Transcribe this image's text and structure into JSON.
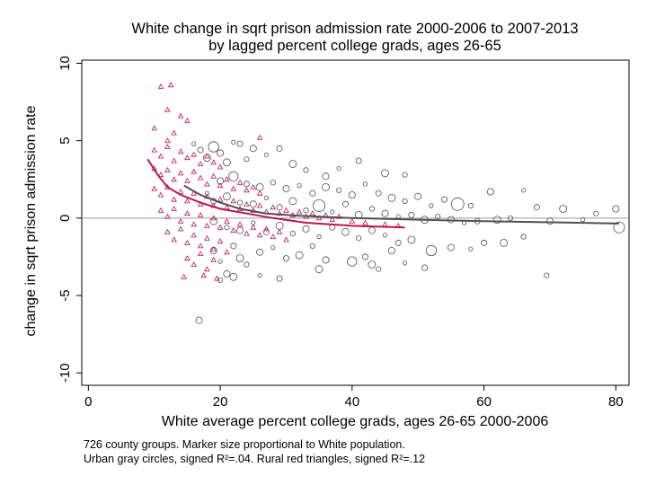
{
  "chart_data": {
    "type": "scatter",
    "title": "White change in sqrt prison admission rate 2000-2006 to 2007-2013",
    "subtitle": "by lagged percent college grads, ages 26-65",
    "xlabel": "White average percent college grads, ages 26-65 2000-2006",
    "ylabel": "change in sqrt prison admission rate",
    "xlim": [
      -1,
      82
    ],
    "ylim": [
      -10.8,
      10.2
    ],
    "x_ticks": [
      "0",
      "20",
      "40",
      "60",
      "80"
    ],
    "y_ticks": [
      "-10",
      "-5",
      "0",
      "5",
      "10"
    ],
    "grid": false,
    "reference_line_y": 0,
    "notes": [
      "726 county groups. Marker size proportional to White population.",
      "Urban gray circles, signed R²=.04. Rural red triangles, signed R²=.12"
    ],
    "colors": {
      "urban": "#505050",
      "rural": "#c0144a",
      "zero_line": "#9a9a9a"
    },
    "series": [
      {
        "marker": "circle",
        "color": "#505050",
        "points": [
          [
            16,
            4.8
          ],
          [
            17,
            4.4
          ],
          [
            18,
            3.9
          ],
          [
            19,
            4.6
          ],
          [
            20,
            4.2
          ],
          [
            22,
            4.9
          ],
          [
            23,
            4.8
          ],
          [
            21,
            3.6
          ],
          [
            24,
            3.8
          ],
          [
            25,
            4.5
          ],
          [
            27,
            4.1
          ],
          [
            29,
            4.5
          ],
          [
            31,
            3.5
          ],
          [
            33,
            3.1
          ],
          [
            36,
            2.7
          ],
          [
            38,
            3.2
          ],
          [
            41,
            3.7
          ],
          [
            45,
            2.9
          ],
          [
            48,
            2.8
          ],
          [
            20,
            2.4
          ],
          [
            22,
            2.7
          ],
          [
            24,
            2.2
          ],
          [
            26,
            2.0
          ],
          [
            28,
            2.3
          ],
          [
            30,
            1.9
          ],
          [
            32,
            2.1
          ],
          [
            34,
            1.6
          ],
          [
            36,
            2.0
          ],
          [
            38,
            1.8
          ],
          [
            40,
            1.5
          ],
          [
            42,
            2.2
          ],
          [
            44,
            1.6
          ],
          [
            46,
            1.3
          ],
          [
            48,
            1.1
          ],
          [
            50,
            1.4
          ],
          [
            52,
            0.8
          ],
          [
            54,
            1.2
          ],
          [
            56,
            0.9
          ],
          [
            58,
            0.8
          ],
          [
            61,
            1.7
          ],
          [
            66,
            1.8
          ],
          [
            68,
            0.7
          ],
          [
            72,
            0.6
          ],
          [
            77,
            0.3
          ],
          [
            80,
            0.6
          ],
          [
            18,
            1.6
          ],
          [
            19,
            1.1
          ],
          [
            21,
            1.4
          ],
          [
            23,
            1.0
          ],
          [
            25,
            0.9
          ],
          [
            27,
            1.3
          ],
          [
            29,
            0.7
          ],
          [
            31,
            1.1
          ],
          [
            33,
            0.5
          ],
          [
            35,
            0.8
          ],
          [
            37,
            0.4
          ],
          [
            39,
            0.9
          ],
          [
            41,
            0.2
          ],
          [
            43,
            0.6
          ],
          [
            45,
            0.3
          ],
          [
            47,
            0.1
          ],
          [
            49,
            0.2
          ],
          [
            51,
            -0.1
          ],
          [
            53,
            0.1
          ],
          [
            55,
            -0.1
          ],
          [
            57,
            -0.3
          ],
          [
            59,
            -0.2
          ],
          [
            62,
            -0.1
          ],
          [
            64,
            0.0
          ],
          [
            70,
            -0.2
          ],
          [
            75,
            -0.1
          ],
          [
            80.5,
            -0.6
          ],
          [
            19,
            -0.2
          ],
          [
            21,
            -0.6
          ],
          [
            23,
            -0.8
          ],
          [
            25,
            -0.3
          ],
          [
            27,
            -0.9
          ],
          [
            29,
            -0.5
          ],
          [
            31,
            -1.0
          ],
          [
            33,
            -0.7
          ],
          [
            35,
            -1.2
          ],
          [
            37,
            -0.6
          ],
          [
            39,
            -0.9
          ],
          [
            41,
            -1.3
          ],
          [
            43,
            -0.8
          ],
          [
            45,
            -1.1
          ],
          [
            47,
            -1.6
          ],
          [
            49,
            -1.4
          ],
          [
            52,
            -2.1
          ],
          [
            55,
            -1.9
          ],
          [
            58,
            -2.0
          ],
          [
            60,
            -1.6
          ],
          [
            63,
            -1.6
          ],
          [
            66,
            -1.2
          ],
          [
            19,
            -2.1
          ],
          [
            20,
            -2.8
          ],
          [
            22,
            -1.8
          ],
          [
            23,
            -2.6
          ],
          [
            24,
            -3.0
          ],
          [
            26,
            -2.2
          ],
          [
            28,
            -1.9
          ],
          [
            30,
            -2.6
          ],
          [
            32,
            -2.4
          ],
          [
            34,
            -1.8
          ],
          [
            36,
            -2.7
          ],
          [
            40,
            -2.8
          ],
          [
            42,
            -2.5
          ],
          [
            43,
            -3.0
          ],
          [
            44,
            -3.3
          ],
          [
            46,
            -2.1
          ],
          [
            48,
            -2.9
          ],
          [
            51,
            -3.2
          ],
          [
            22,
            -3.8
          ],
          [
            20,
            -4.0
          ],
          [
            21,
            -3.6
          ],
          [
            26,
            -3.7
          ],
          [
            29,
            -3.9
          ],
          [
            35,
            -3.3
          ],
          [
            69.5,
            -3.7
          ],
          [
            16.8,
            -6.6
          ]
        ]
      },
      {
        "marker": "triangle",
        "color": "#c0144a",
        "points": [
          [
            11,
            8.5
          ],
          [
            12.5,
            8.6
          ],
          [
            12,
            7.0
          ],
          [
            14,
            6.6
          ],
          [
            15,
            6.3
          ],
          [
            10,
            5.8
          ],
          [
            26,
            5.2
          ],
          [
            13,
            5.5
          ],
          [
            12,
            5.0
          ],
          [
            10,
            4.4
          ],
          [
            11,
            4.0
          ],
          [
            12,
            4.6
          ],
          [
            13,
            3.7
          ],
          [
            14,
            4.3
          ],
          [
            15,
            3.9
          ],
          [
            16,
            4.1
          ],
          [
            17,
            3.5
          ],
          [
            18,
            4.0
          ],
          [
            19,
            3.6
          ],
          [
            20,
            3.3
          ],
          [
            10,
            3.2
          ],
          [
            11,
            2.8
          ],
          [
            12,
            3.1
          ],
          [
            13,
            2.5
          ],
          [
            14,
            2.9
          ],
          [
            15,
            2.4
          ],
          [
            16,
            3.0
          ],
          [
            17,
            2.6
          ],
          [
            18,
            2.2
          ],
          [
            19,
            2.7
          ],
          [
            20,
            2.1
          ],
          [
            21,
            2.5
          ],
          [
            22,
            1.9
          ],
          [
            23,
            2.3
          ],
          [
            24,
            1.8
          ],
          [
            25,
            2.0
          ],
          [
            26,
            1.6
          ],
          [
            10,
            1.9
          ],
          [
            11,
            1.5
          ],
          [
            12,
            2.0
          ],
          [
            13,
            1.2
          ],
          [
            14,
            1.7
          ],
          [
            15,
            1.1
          ],
          [
            16,
            1.6
          ],
          [
            17,
            0.9
          ],
          [
            18,
            1.4
          ],
          [
            19,
            0.8
          ],
          [
            20,
            1.2
          ],
          [
            21,
            0.7
          ],
          [
            22,
            1.1
          ],
          [
            23,
            0.6
          ],
          [
            24,
            0.9
          ],
          [
            25,
            0.5
          ],
          [
            26,
            0.8
          ],
          [
            27,
            0.4
          ],
          [
            28,
            0.7
          ],
          [
            29,
            0.3
          ],
          [
            30,
            0.5
          ],
          [
            31,
            0.2
          ],
          [
            32,
            0.4
          ],
          [
            33,
            0.1
          ],
          [
            34,
            0.3
          ],
          [
            35,
            0.0
          ],
          [
            36,
            0.2
          ],
          [
            37,
            -0.1
          ],
          [
            38,
            0.1
          ],
          [
            40,
            -0.2
          ],
          [
            42,
            -0.3
          ],
          [
            45,
            -0.4
          ],
          [
            47,
            -0.5
          ],
          [
            11,
            0.5
          ],
          [
            12,
            0.1
          ],
          [
            13,
            0.6
          ],
          [
            14,
            -0.2
          ],
          [
            15,
            0.3
          ],
          [
            16,
            -0.4
          ],
          [
            17,
            0.2
          ],
          [
            18,
            -0.5
          ],
          [
            19,
            0.0
          ],
          [
            20,
            -0.6
          ],
          [
            21,
            -0.2
          ],
          [
            22,
            -0.8
          ],
          [
            23,
            -0.4
          ],
          [
            24,
            -1.0
          ],
          [
            25,
            -0.6
          ],
          [
            26,
            -1.1
          ],
          [
            27,
            -0.7
          ],
          [
            28,
            -1.2
          ],
          [
            29,
            -0.9
          ],
          [
            30,
            -1.4
          ],
          [
            12,
            -0.9
          ],
          [
            13,
            -1.4
          ],
          [
            14,
            -0.7
          ],
          [
            15,
            -1.6
          ],
          [
            16,
            -1.1
          ],
          [
            17,
            -1.8
          ],
          [
            18,
            -1.3
          ],
          [
            19,
            -2.0
          ],
          [
            20,
            -1.5
          ],
          [
            21,
            -2.2
          ],
          [
            15,
            -2.6
          ],
          [
            16,
            -3.0
          ],
          [
            17,
            -2.3
          ],
          [
            18,
            -3.3
          ],
          [
            19,
            -2.7
          ],
          [
            14.5,
            -3.8
          ],
          [
            17.5,
            -3.7
          ],
          [
            19.5,
            -3.9
          ]
        ]
      }
    ],
    "fit_lines": [
      {
        "color": "#505050",
        "points": [
          [
            14.5,
            2.1
          ],
          [
            17,
            1.5
          ],
          [
            20,
            1.0
          ],
          [
            23,
            0.6
          ],
          [
            27,
            0.3
          ],
          [
            32,
            0.15
          ],
          [
            40,
            0.0
          ],
          [
            50,
            -0.1
          ],
          [
            60,
            -0.2
          ],
          [
            70,
            -0.27
          ],
          [
            80.5,
            -0.35
          ]
        ]
      },
      {
        "color": "#c0144a",
        "points": [
          [
            9,
            3.8
          ],
          [
            10.5,
            2.8
          ],
          [
            12,
            2.0
          ],
          [
            14,
            1.5
          ],
          [
            17,
            1.0
          ],
          [
            20,
            0.6
          ],
          [
            24,
            0.3
          ],
          [
            28,
            0.0
          ],
          [
            33,
            -0.3
          ],
          [
            40,
            -0.5
          ],
          [
            48,
            -0.6
          ]
        ]
      }
    ]
  }
}
